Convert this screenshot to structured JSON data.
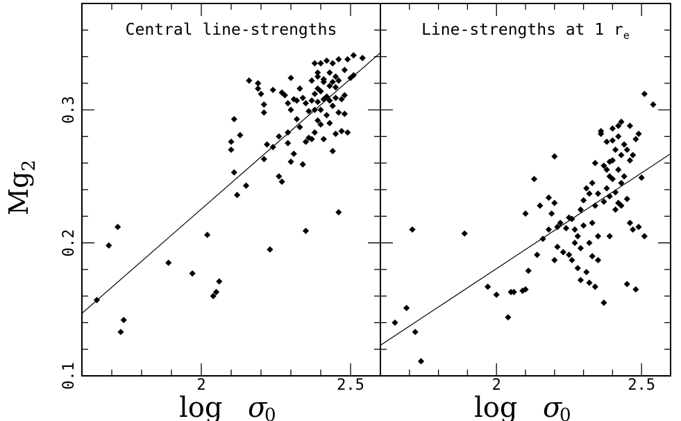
{
  "ylabel_main": "Mg",
  "ylabel_sub": "2",
  "xlabel_main": "log",
  "xlabel_sym": "σ",
  "xlabel_sub": "0",
  "chart_data": [
    {
      "type": "scatter",
      "title": "Central line-strengths",
      "title_sub": "",
      "xlim": [
        1.6,
        2.6
      ],
      "ylim": [
        0.1,
        0.38
      ],
      "xticks": [
        {
          "v": 2,
          "label": "2"
        },
        {
          "v": 2.5,
          "label": "2.5"
        }
      ],
      "yticks": [
        {
          "v": 0.1,
          "label": "0.1"
        },
        {
          "v": 0.2,
          "label": "0.2"
        },
        {
          "v": 0.3,
          "label": "0.3"
        }
      ],
      "fit_line": [
        [
          1.6,
          0.147
        ],
        [
          2.6,
          0.343
        ]
      ],
      "series": [
        {
          "marker": "diamond",
          "points": [
            [
              1.65,
              0.157
            ],
            [
              1.69,
              0.198
            ],
            [
              1.72,
              0.212
            ],
            [
              1.73,
              0.133
            ],
            [
              1.74,
              0.142
            ],
            [
              1.89,
              0.185
            ],
            [
              1.97,
              0.177
            ],
            [
              2.02,
              0.206
            ],
            [
              2.04,
              0.16
            ],
            [
              2.05,
              0.163
            ],
            [
              2.06,
              0.171
            ],
            [
              2.1,
              0.276
            ],
            [
              2.1,
              0.27
            ],
            [
              2.11,
              0.253
            ],
            [
              2.11,
              0.293
            ],
            [
              2.12,
              0.236
            ],
            [
              2.13,
              0.281
            ],
            [
              2.15,
              0.243
            ],
            [
              2.16,
              0.322
            ],
            [
              2.19,
              0.32
            ],
            [
              2.19,
              0.316
            ],
            [
              2.2,
              0.312
            ],
            [
              2.21,
              0.263
            ],
            [
              2.21,
              0.298
            ],
            [
              2.21,
              0.304
            ],
            [
              2.22,
              0.274
            ],
            [
              2.23,
              0.195
            ],
            [
              2.24,
              0.315
            ],
            [
              2.24,
              0.272
            ],
            [
              2.26,
              0.25
            ],
            [
              2.26,
              0.28
            ],
            [
              2.27,
              0.246
            ],
            [
              2.27,
              0.313
            ],
            [
              2.28,
              0.311
            ],
            [
              2.29,
              0.305
            ],
            [
              2.29,
              0.283
            ],
            [
              2.29,
              0.275
            ],
            [
              2.3,
              0.3
            ],
            [
              2.3,
              0.324
            ],
            [
              2.3,
              0.261
            ],
            [
              2.31,
              0.308
            ],
            [
              2.31,
              0.267
            ],
            [
              2.32,
              0.307
            ],
            [
              2.32,
              0.293
            ],
            [
              2.33,
              0.316
            ],
            [
              2.33,
              0.287
            ],
            [
              2.34,
              0.309
            ],
            [
              2.34,
              0.259
            ],
            [
              2.35,
              0.305
            ],
            [
              2.35,
              0.276
            ],
            [
              2.35,
              0.209
            ],
            [
              2.36,
              0.299
            ],
            [
              2.36,
              0.279
            ],
            [
              2.37,
              0.307
            ],
            [
              2.37,
              0.322
            ],
            [
              2.37,
              0.278
            ],
            [
              2.38,
              0.335
            ],
            [
              2.38,
              0.3
            ],
            [
              2.38,
              0.283
            ],
            [
              2.38,
              0.312
            ],
            [
              2.39,
              0.328
            ],
            [
              2.39,
              0.316
            ],
            [
              2.39,
              0.292
            ],
            [
              2.39,
              0.306
            ],
            [
              2.39,
              0.325
            ],
            [
              2.4,
              0.335
            ],
            [
              2.4,
              0.314
            ],
            [
              2.4,
              0.289
            ],
            [
              2.4,
              0.3
            ],
            [
              2.41,
              0.323
            ],
            [
              2.41,
              0.278
            ],
            [
              2.41,
              0.321
            ],
            [
              2.41,
              0.308
            ],
            [
              2.42,
              0.337
            ],
            [
              2.42,
              0.31
            ],
            [
              2.42,
              0.296
            ],
            [
              2.43,
              0.328
            ],
            [
              2.43,
              0.318
            ],
            [
              2.43,
              0.307
            ],
            [
              2.43,
              0.29
            ],
            [
              2.44,
              0.335
            ],
            [
              2.44,
              0.321
            ],
            [
              2.44,
              0.303
            ],
            [
              2.44,
              0.269
            ],
            [
              2.45,
              0.325
            ],
            [
              2.45,
              0.317
            ],
            [
              2.45,
              0.309
            ],
            [
              2.45,
              0.282
            ],
            [
              2.46,
              0.338
            ],
            [
              2.46,
              0.322
            ],
            [
              2.46,
              0.298
            ],
            [
              2.46,
              0.223
            ],
            [
              2.47,
              0.308
            ],
            [
              2.47,
              0.284
            ],
            [
              2.48,
              0.33
            ],
            [
              2.48,
              0.311
            ],
            [
              2.48,
              0.297
            ],
            [
              2.49,
              0.338
            ],
            [
              2.49,
              0.283
            ],
            [
              2.5,
              0.324
            ],
            [
              2.51,
              0.341
            ],
            [
              2.51,
              0.326
            ],
            [
              2.54,
              0.339
            ]
          ]
        }
      ]
    },
    {
      "type": "scatter",
      "title": "Line-strengths at 1 r",
      "title_sub": "e",
      "xlim": [
        1.6,
        2.6
      ],
      "ylim": [
        0.1,
        0.38
      ],
      "xticks": [
        {
          "v": 2,
          "label": "2"
        },
        {
          "v": 2.5,
          "label": "2.5"
        }
      ],
      "yticks": [],
      "fit_line": [
        [
          1.6,
          0.123
        ],
        [
          2.6,
          0.267
        ]
      ],
      "series": [
        {
          "marker": "diamond",
          "points": [
            [
              1.65,
              0.14
            ],
            [
              1.69,
              0.151
            ],
            [
              1.71,
              0.21
            ],
            [
              1.72,
              0.133
            ],
            [
              1.74,
              0.111
            ],
            [
              1.89,
              0.207
            ],
            [
              1.97,
              0.167
            ],
            [
              2.0,
              0.161
            ],
            [
              2.04,
              0.144
            ],
            [
              2.05,
              0.163
            ],
            [
              2.06,
              0.163
            ],
            [
              2.09,
              0.164
            ],
            [
              2.1,
              0.165
            ],
            [
              2.1,
              0.222
            ],
            [
              2.11,
              0.179
            ],
            [
              2.13,
              0.248
            ],
            [
              2.14,
              0.191
            ],
            [
              2.15,
              0.228
            ],
            [
              2.16,
              0.203
            ],
            [
              2.18,
              0.21
            ],
            [
              2.18,
              0.234
            ],
            [
              2.19,
              0.222
            ],
            [
              2.2,
              0.23
            ],
            [
              2.2,
              0.265
            ],
            [
              2.2,
              0.187
            ],
            [
              2.21,
              0.212
            ],
            [
              2.21,
              0.197
            ],
            [
              2.22,
              0.215
            ],
            [
              2.23,
              0.193
            ],
            [
              2.24,
              0.211
            ],
            [
              2.25,
              0.191
            ],
            [
              2.25,
              0.219
            ],
            [
              2.26,
              0.218
            ],
            [
              2.26,
              0.187
            ],
            [
              2.27,
              0.21
            ],
            [
              2.27,
              0.2
            ],
            [
              2.28,
              0.205
            ],
            [
              2.28,
              0.181
            ],
            [
              2.29,
              0.225
            ],
            [
              2.29,
              0.172
            ],
            [
              2.29,
              0.196
            ],
            [
              2.3,
              0.232
            ],
            [
              2.3,
              0.213
            ],
            [
              2.31,
              0.241
            ],
            [
              2.31,
              0.178
            ],
            [
              2.32,
              0.237
            ],
            [
              2.32,
              0.2
            ],
            [
              2.32,
              0.17
            ],
            [
              2.33,
              0.245
            ],
            [
              2.33,
              0.215
            ],
            [
              2.33,
              0.19
            ],
            [
              2.34,
              0.228
            ],
            [
              2.34,
              0.26
            ],
            [
              2.34,
              0.167
            ],
            [
              2.35,
              0.205
            ],
            [
              2.35,
              0.187
            ],
            [
              2.35,
              0.237
            ],
            [
              2.36,
              0.284
            ],
            [
              2.36,
              0.282
            ],
            [
              2.37,
              0.258
            ],
            [
              2.37,
              0.231
            ],
            [
              2.37,
              0.155
            ],
            [
              2.38,
              0.255
            ],
            [
              2.38,
              0.276
            ],
            [
              2.38,
              0.241
            ],
            [
              2.39,
              0.261
            ],
            [
              2.39,
              0.25
            ],
            [
              2.39,
              0.235
            ],
            [
              2.39,
              0.205
            ],
            [
              2.4,
              0.286
            ],
            [
              2.4,
              0.277
            ],
            [
              2.4,
              0.262
            ],
            [
              2.4,
              0.248
            ],
            [
              2.41,
              0.27
            ],
            [
              2.41,
              0.238
            ],
            [
              2.41,
              0.225
            ],
            [
              2.42,
              0.288
            ],
            [
              2.42,
              0.28
            ],
            [
              2.42,
              0.255
            ],
            [
              2.42,
              0.23
            ],
            [
              2.43,
              0.291
            ],
            [
              2.43,
              0.266
            ],
            [
              2.43,
              0.245
            ],
            [
              2.43,
              0.228
            ],
            [
              2.44,
              0.274
            ],
            [
              2.44,
              0.25
            ],
            [
              2.45,
              0.27
            ],
            [
              2.45,
              0.233
            ],
            [
              2.45,
              0.169
            ],
            [
              2.46,
              0.288
            ],
            [
              2.46,
              0.262
            ],
            [
              2.46,
              0.215
            ],
            [
              2.47,
              0.266
            ],
            [
              2.47,
              0.21
            ],
            [
              2.48,
              0.278
            ],
            [
              2.48,
              0.165
            ],
            [
              2.49,
              0.282
            ],
            [
              2.49,
              0.212
            ],
            [
              2.5,
              0.249
            ],
            [
              2.51,
              0.312
            ],
            [
              2.51,
              0.205
            ],
            [
              2.54,
              0.304
            ]
          ]
        }
      ]
    }
  ]
}
